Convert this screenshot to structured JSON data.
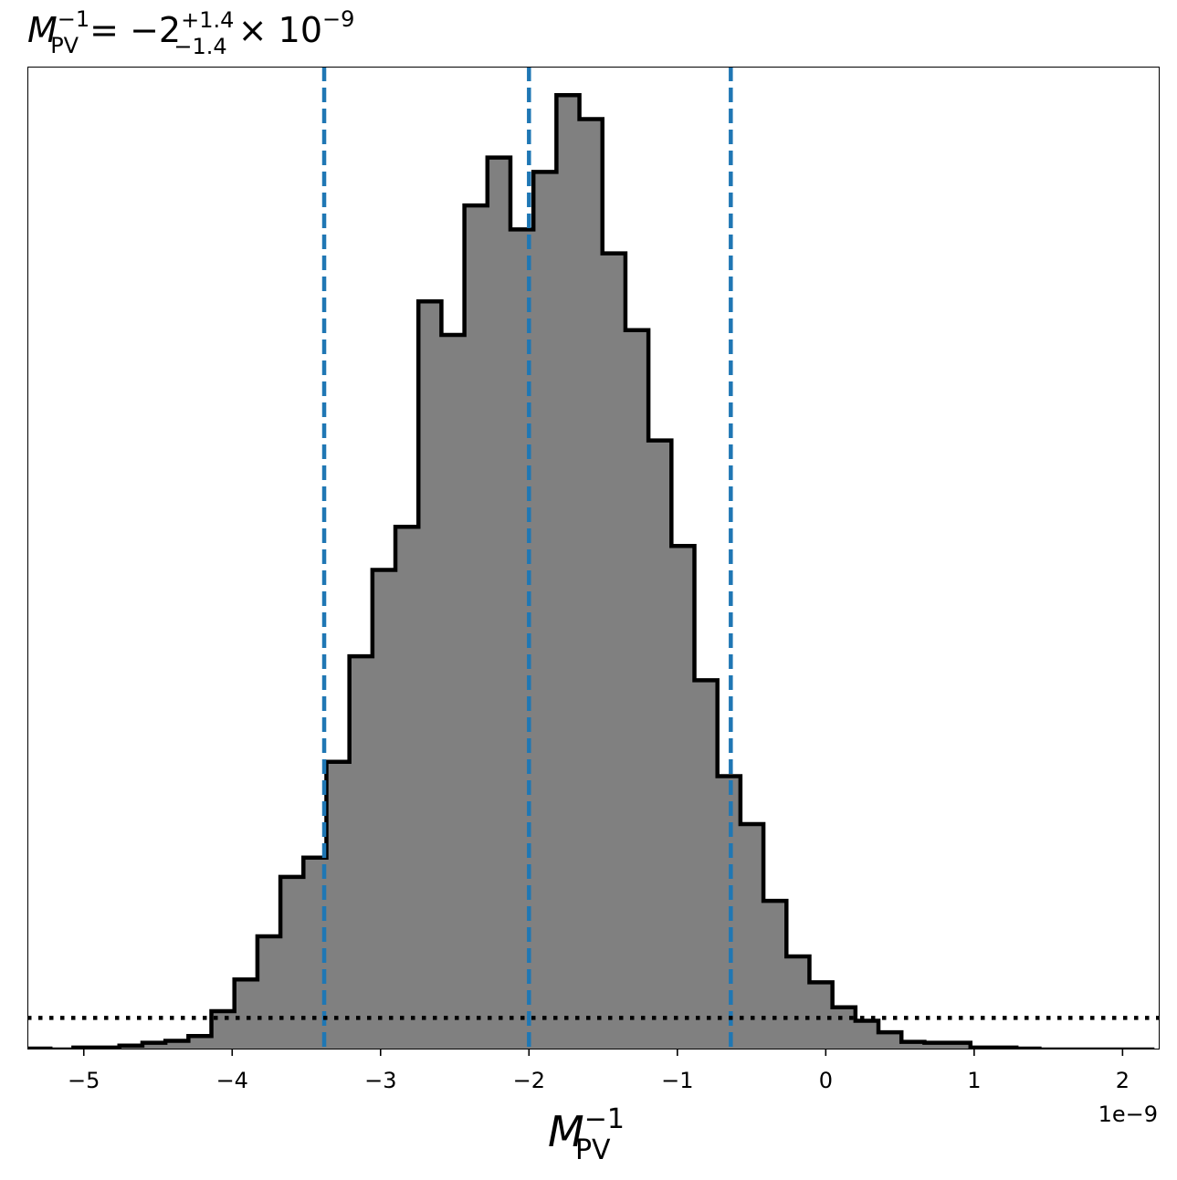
{
  "chart_data": {
    "type": "histogram",
    "title": {
      "base": "M",
      "base_sub": "PV",
      "base_sup": "−1",
      "equals": " = −2",
      "upper_err": "+1.4",
      "lower_err": "−1.4",
      "times": " × 10",
      "exponent": "−9"
    },
    "xlabel": {
      "base": "M",
      "sub": "PV",
      "sup": "−1"
    },
    "x_offset_label": "1e−9",
    "xlim": [
      -5.38,
      2.25
    ],
    "ylim": [
      0,
      1.0
    ],
    "x_unit_scale": "1e-9",
    "xticks": [
      {
        "value": -5,
        "label": "−5"
      },
      {
        "value": -4,
        "label": "−4"
      },
      {
        "value": -3,
        "label": "−3"
      },
      {
        "value": -2,
        "label": "−2"
      },
      {
        "value": -1,
        "label": "−1"
      },
      {
        "value": 0,
        "label": "0"
      },
      {
        "value": 1,
        "label": "1"
      },
      {
        "value": 2,
        "label": "2"
      }
    ],
    "bin_edges": [
      -5.38,
      -5.225,
      -5.07,
      -4.915,
      -4.76,
      -4.605,
      -4.45,
      -4.295,
      -4.14,
      -3.985,
      -3.83,
      -3.675,
      -3.52,
      -3.365,
      -3.21,
      -3.055,
      -2.9,
      -2.745,
      -2.59,
      -2.435,
      -2.28,
      -2.125,
      -1.97,
      -1.815,
      -1.66,
      -1.505,
      -1.35,
      -1.195,
      -1.04,
      -0.885,
      -0.73,
      -0.575,
      -0.42,
      -0.265,
      -0.11,
      0.045,
      0.2,
      0.355,
      0.51,
      0.665,
      0.82,
      0.975,
      1.13,
      1.285,
      1.44,
      1.595,
      1.75,
      1.905,
      2.06,
      2.215
    ],
    "values": [
      0.001,
      0.0,
      0.002,
      0.002,
      0.004,
      0.007,
      0.009,
      0.014,
      0.04,
      0.073,
      0.118,
      0.18,
      0.2,
      0.3,
      0.41,
      0.5,
      0.545,
      0.78,
      0.745,
      0.88,
      0.93,
      0.855,
      0.915,
      0.995,
      0.97,
      0.83,
      0.75,
      0.635,
      0.525,
      0.385,
      0.285,
      0.235,
      0.155,
      0.097,
      0.07,
      0.044,
      0.03,
      0.018,
      0.008,
      0.007,
      0.007,
      0.002,
      0.002,
      0.001,
      0.0,
      0.0,
      0.0,
      0.0,
      0.0
    ],
    "quantiles": [
      -3.38,
      -2.0,
      -0.64
    ],
    "reference_level": 0.033,
    "colors": {
      "fill": "#808080",
      "edge": "#000000",
      "quantile": "#1f77b4",
      "reference": "#000000"
    }
  }
}
